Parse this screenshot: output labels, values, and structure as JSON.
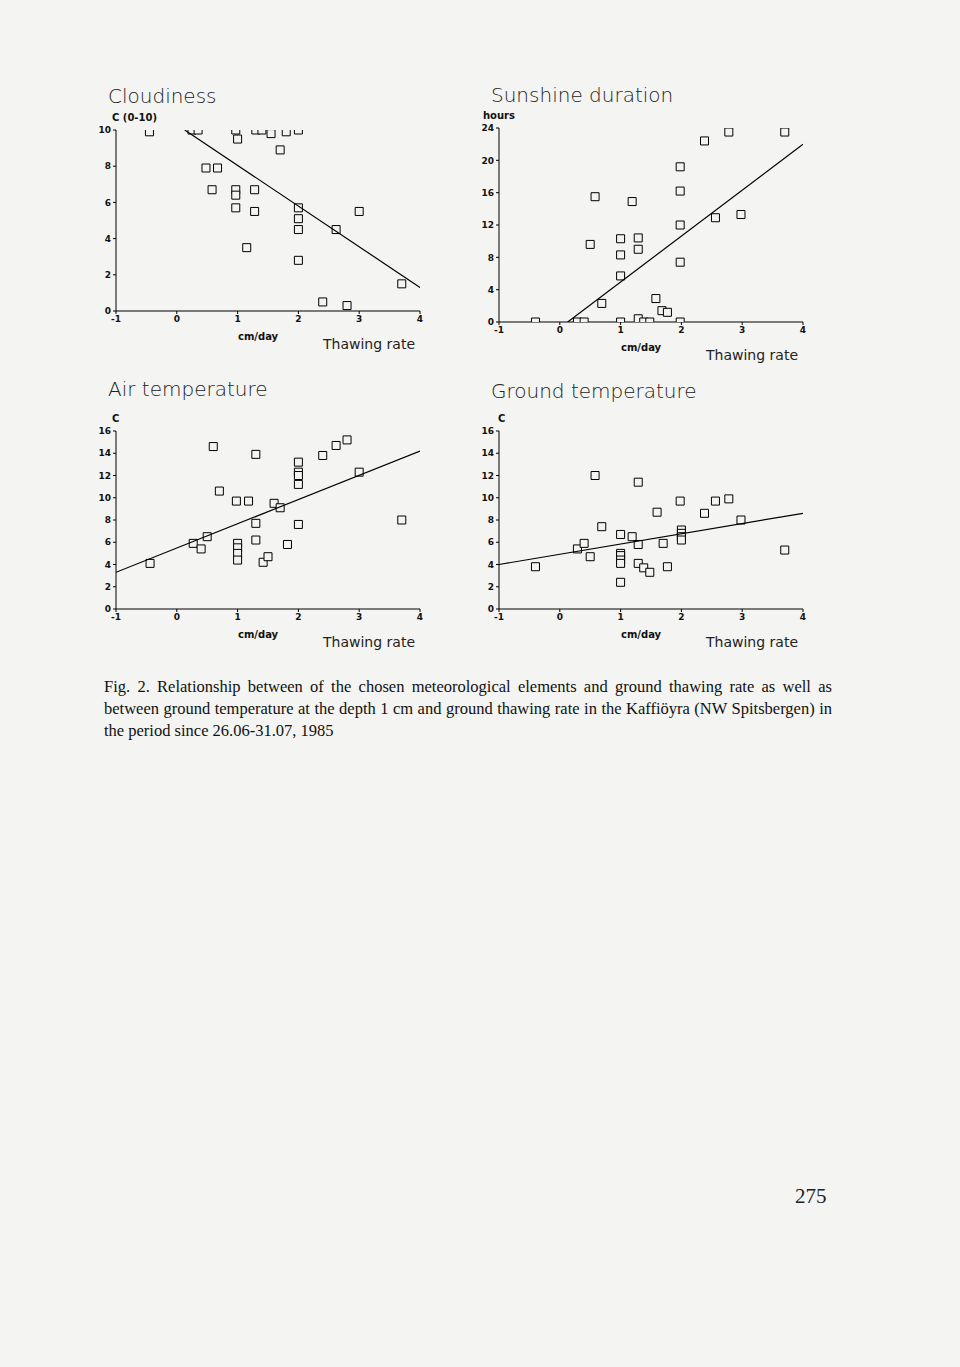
{
  "chart_data": [
    {
      "type": "scatter",
      "title": "Cloudiness",
      "ylabel": "C (0-10)",
      "xunit": "cm/day",
      "xlabel": "Thawing rate",
      "xlim": [
        -1,
        4
      ],
      "xticks": [
        -1,
        0,
        1,
        2,
        3,
        4
      ],
      "ylim": [
        0,
        10
      ],
      "yticks": [
        0,
        2,
        4,
        6,
        8,
        10
      ],
      "series": [
        {
          "type": "scatter",
          "marker": "square",
          "color": "#000000",
          "x": [
            -0.45,
            0.25,
            0.35,
            0.97,
            1.0,
            1.3,
            1.4,
            1.55,
            1.8,
            2.0,
            1.7,
            0.48,
            0.67,
            0.58,
            0.97,
            0.97,
            1.28,
            0.97,
            1.28,
            2.0,
            2.0,
            2.0,
            2.62,
            3.0,
            1.15,
            2.0,
            2.4,
            2.8,
            3.7
          ],
          "values": [
            9.9,
            10,
            10,
            10,
            9.5,
            10,
            10,
            9.8,
            9.9,
            10,
            8.9,
            7.9,
            7.9,
            6.7,
            6.7,
            6.4,
            6.7,
            5.7,
            5.5,
            5.7,
            5.1,
            4.5,
            4.5,
            5.5,
            3.5,
            2.8,
            0.5,
            0.3,
            1.5
          ]
        },
        {
          "type": "line",
          "line_style": "solid",
          "color": "#000000",
          "x": [
            0.13,
            4
          ],
          "values": [
            10,
            1.3
          ]
        }
      ]
    },
    {
      "type": "scatter",
      "title": "Sunshine duration",
      "ylabel": "hours",
      "xunit": "cm/day",
      "xlabel": "Thawing rate",
      "xlim": [
        -1,
        4
      ],
      "xticks": [
        -1,
        0,
        1,
        2,
        3,
        4
      ],
      "ylim": [
        0,
        24
      ],
      "yticks": [
        0,
        4,
        8,
        12,
        16,
        20,
        24
      ],
      "series": [
        {
          "type": "scatter",
          "marker": "square",
          "color": "#000000",
          "x": [
            2.78,
            3.7,
            2.38,
            1.98,
            1.98,
            0.58,
            1.19,
            1.98,
            2.56,
            2.98,
            0.5,
            1.0,
            1.29,
            1.0,
            1.29,
            1.98,
            1.0,
            0.69,
            1.58,
            1.68,
            1.77,
            -0.4,
            0.29,
            0.4,
            1.0,
            1.29,
            1.38,
            1.48,
            1.98
          ],
          "values": [
            23.5,
            23.5,
            22.4,
            19.2,
            16.2,
            15.5,
            14.9,
            12,
            12.9,
            13.3,
            9.6,
            10.3,
            10.4,
            8.3,
            9,
            7.4,
            5.7,
            2.3,
            2.9,
            1.4,
            1.2,
            0,
            0,
            0,
            0,
            0.4,
            0,
            0,
            0
          ]
        },
        {
          "type": "line",
          "line_style": "solid",
          "color": "#000000",
          "x": [
            0.13,
            4
          ],
          "values": [
            0,
            22
          ]
        }
      ]
    },
    {
      "type": "scatter",
      "title": "Air temperature",
      "ylabel": "C",
      "xunit": "cm/day",
      "xlabel": "Thawing rate",
      "xlim": [
        -1,
        4
      ],
      "xticks": [
        -1,
        0,
        1,
        2,
        3,
        4
      ],
      "ylim": [
        0,
        16
      ],
      "yticks": [
        0,
        2,
        4,
        6,
        8,
        10,
        12,
        14,
        16
      ],
      "series": [
        {
          "type": "scatter",
          "marker": "square",
          "color": "#000000",
          "x": [
            -0.44,
            0.27,
            0.4,
            0.5,
            0.6,
            0.7,
            0.98,
            1.18,
            1.3,
            1.0,
            1.0,
            1.0,
            1.0,
            1.3,
            1.3,
            1.42,
            1.5,
            1.6,
            1.7,
            1.82,
            2.0,
            2.0,
            2.0,
            2.0,
            2.0,
            2.4,
            2.62,
            2.8,
            3.0,
            3.7
          ],
          "values": [
            4.1,
            5.9,
            5.4,
            6.5,
            14.6,
            10.6,
            9.7,
            9.7,
            13.9,
            5.9,
            5.5,
            5.0,
            4.4,
            7.7,
            6.2,
            4.2,
            4.7,
            9.5,
            9.1,
            5.8,
            13.2,
            12.3,
            12.0,
            11.2,
            7.6,
            13.8,
            14.7,
            15.2,
            12.3,
            8.0
          ]
        },
        {
          "type": "line",
          "line_style": "solid",
          "color": "#000000",
          "x": [
            -1,
            4
          ],
          "values": [
            3.3,
            14.2
          ]
        }
      ]
    },
    {
      "type": "scatter",
      "title": "Ground temperature",
      "ylabel": "C",
      "xunit": "cm/day",
      "xlabel": "Thawing rate",
      "xlim": [
        -1,
        4
      ],
      "xticks": [
        -1,
        0,
        1,
        2,
        3,
        4
      ],
      "ylim": [
        0,
        16
      ],
      "yticks": [
        0,
        2,
        4,
        6,
        8,
        10,
        12,
        14,
        16
      ],
      "series": [
        {
          "type": "scatter",
          "marker": "square",
          "color": "#000000",
          "x": [
            -0.4,
            0.29,
            0.4,
            0.5,
            0.58,
            0.69,
            1.0,
            1.19,
            1.0,
            1.0,
            1.0,
            1.0,
            1.0,
            1.29,
            1.29,
            1.29,
            1.38,
            1.48,
            1.6,
            1.7,
            1.77,
            1.98,
            2.0,
            2.0,
            2.0,
            2.0,
            2.38,
            2.56,
            2.78,
            2.98,
            3.7
          ],
          "values": [
            3.8,
            5.4,
            5.9,
            4.7,
            12.0,
            7.4,
            6.7,
            6.5,
            5.0,
            4.8,
            4.4,
            4.1,
            2.4,
            11.4,
            5.8,
            4.1,
            3.7,
            3.3,
            8.7,
            5.9,
            3.8,
            9.7,
            7.1,
            6.8,
            6.5,
            6.2,
            8.6,
            9.7,
            9.9,
            8.0,
            5.3
          ]
        },
        {
          "type": "line",
          "line_style": "solid",
          "color": "#000000",
          "x": [
            -1,
            4
          ],
          "values": [
            4.0,
            8.6
          ]
        }
      ]
    }
  ],
  "caption": "Fig. 2. Relationship between of the chosen meteorological elements and ground thawing rate as well as between ground temperature at the depth 1 cm and ground thawing rate in the Kaffiöyra (NW Spitsbergen) in the period since 26.06-31.07, 1985",
  "page_number": "275"
}
